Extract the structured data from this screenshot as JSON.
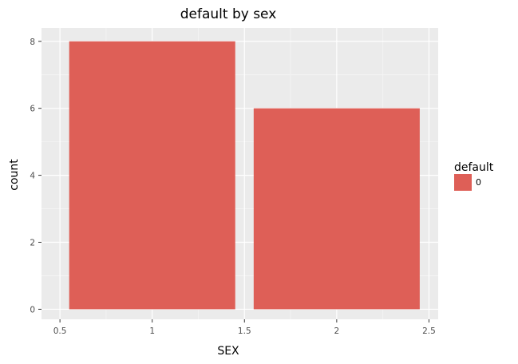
{
  "chart_data": {
    "type": "bar",
    "title": "default by sex",
    "xlabel": "SEX",
    "ylabel": "count",
    "x": [
      1,
      2
    ],
    "values": [
      8,
      6
    ],
    "bar_width": 0.9,
    "xlim": [
      0.4,
      2.55
    ],
    "ylim": [
      -0.3,
      8.4
    ],
    "x_ticks": [
      0.5,
      1,
      1.5,
      2,
      2.5
    ],
    "x_tick_labels": [
      "0.5",
      "1",
      "1.5",
      "2",
      "2.5"
    ],
    "y_ticks": [
      0,
      2,
      4,
      6,
      8
    ],
    "y_tick_labels": [
      "0",
      "2",
      "4",
      "6",
      "8"
    ],
    "grid": true,
    "legend": {
      "title": "default",
      "position": "right",
      "entries": [
        {
          "label": "0",
          "color": "#de5f57"
        }
      ]
    },
    "colors": {
      "bar": "#de5f57",
      "panel": "#ebebeb",
      "grid_major": "#ffffff",
      "grid_minor": "#f5f5f5"
    }
  }
}
